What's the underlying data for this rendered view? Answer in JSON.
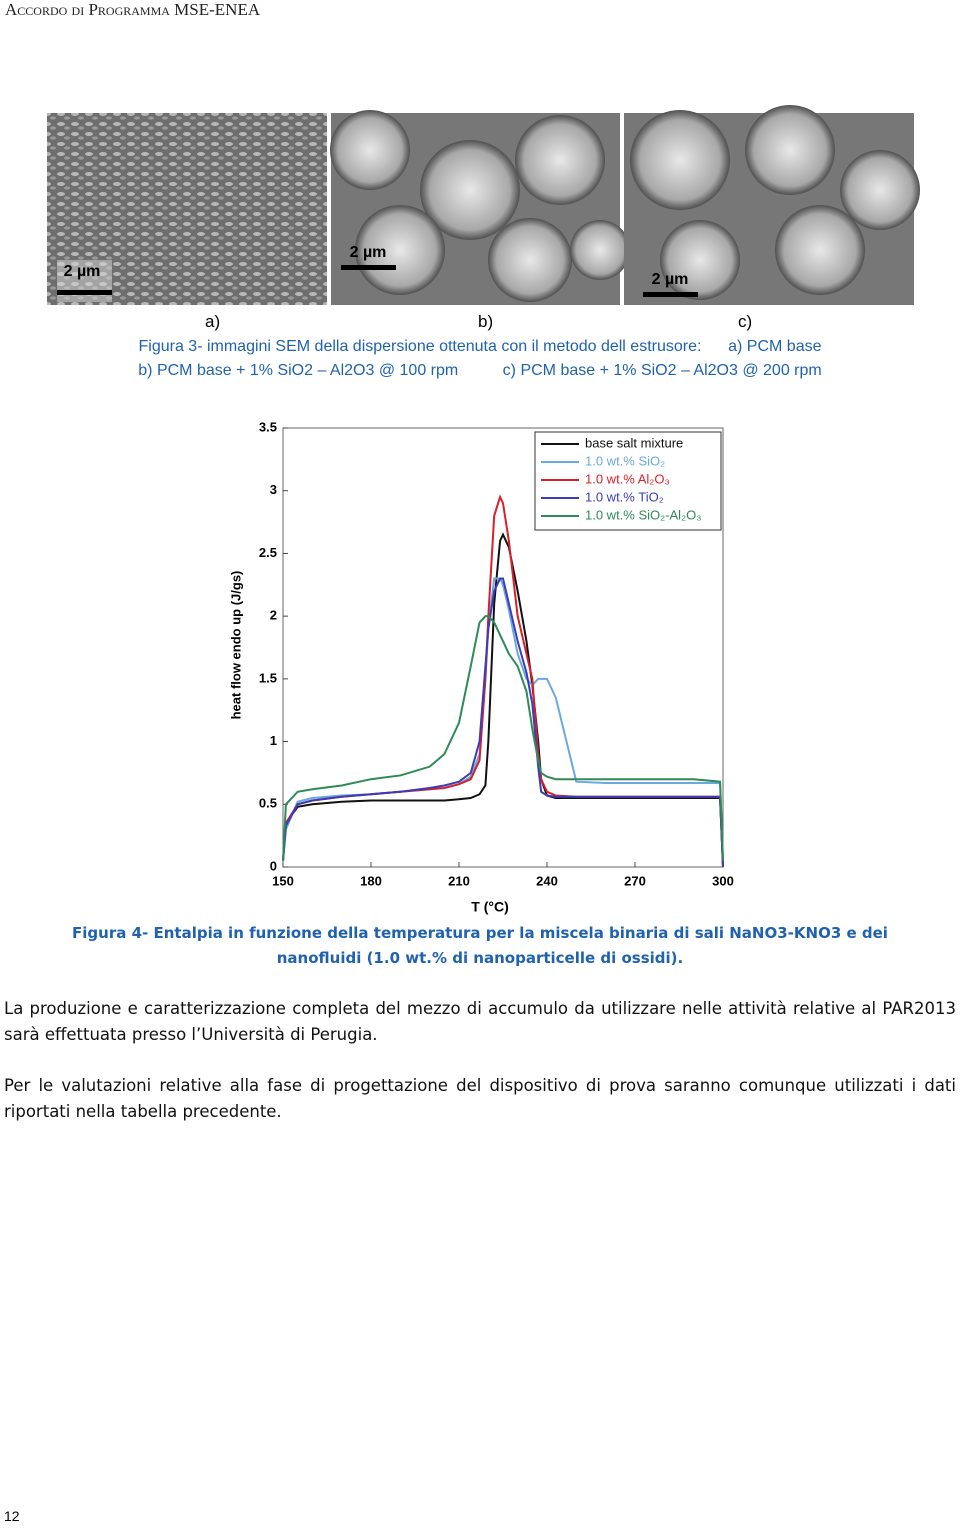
{
  "header": "Accordo di Programma MSE-ENEA",
  "figure3": {
    "scale_labels": [
      "2 µm",
      "2 µm",
      "2 µm"
    ],
    "panel_labels": [
      "a)",
      "b)",
      "c)"
    ],
    "caption": [
      "Figura 3- immagini SEM della dispersione ottenuta con il metodo dell estrusore:      a) PCM base",
      "b) PCM base + 1% SiO2 – Al2O3 @ 100 rpm          c) PCM base + 1% SiO2 – Al2O3 @ 200 rpm"
    ]
  },
  "chart_data": {
    "type": "line",
    "xlabel": "T (°C)",
    "ylabel": "heat flow endo up (J/gs)",
    "x": [
      150,
      151,
      155,
      160,
      170,
      180,
      190,
      200,
      205,
      210,
      214,
      217,
      219,
      220,
      222,
      224,
      225,
      227,
      230,
      233,
      235,
      237,
      238,
      240,
      243,
      250,
      260,
      270,
      280,
      290,
      299,
      300
    ],
    "xlim": [
      150,
      300
    ],
    "xticks": [
      150,
      180,
      210,
      240,
      270,
      300
    ],
    "ylim": [
      0,
      3.5
    ],
    "yticks": [
      0,
      0.5,
      1,
      1.5,
      2,
      2.5,
      3,
      3.5
    ],
    "legend": "upper right",
    "series": [
      {
        "name": "base salt mixture",
        "color": "#111111",
        "values": [
          0.05,
          0.35,
          0.48,
          0.5,
          0.52,
          0.53,
          0.53,
          0.53,
          0.53,
          0.54,
          0.55,
          0.58,
          0.65,
          1.0,
          2.1,
          2.6,
          2.65,
          2.55,
          2.2,
          1.8,
          1.45,
          1.0,
          0.7,
          0.57,
          0.55,
          0.55,
          0.55,
          0.55,
          0.55,
          0.55,
          0.55,
          0.0
        ]
      },
      {
        "name": "1.0 wt.% SiO₂",
        "color": "#6aa8e0",
        "values": [
          0.05,
          0.3,
          0.52,
          0.55,
          0.57,
          0.58,
          0.6,
          0.62,
          0.63,
          0.66,
          0.72,
          0.9,
          1.5,
          1.9,
          2.3,
          2.3,
          2.25,
          2.05,
          1.7,
          1.5,
          1.45,
          1.5,
          1.5,
          1.5,
          1.35,
          0.68,
          0.67,
          0.67,
          0.67,
          0.67,
          0.67,
          0.05
        ]
      },
      {
        "name": "1.0 wt.% Al₂O₃",
        "color": "#d9202a",
        "values": [
          0.05,
          0.35,
          0.5,
          0.53,
          0.56,
          0.58,
          0.6,
          0.62,
          0.63,
          0.66,
          0.7,
          0.85,
          1.5,
          2.0,
          2.8,
          2.95,
          2.9,
          2.6,
          2.0,
          1.7,
          1.5,
          0.9,
          0.7,
          0.6,
          0.57,
          0.56,
          0.56,
          0.56,
          0.56,
          0.56,
          0.56,
          0.0
        ]
      },
      {
        "name": "1.0 wt.% TiO₂",
        "color": "#3c3cb8",
        "values": [
          0.05,
          0.33,
          0.5,
          0.53,
          0.56,
          0.58,
          0.6,
          0.63,
          0.65,
          0.68,
          0.75,
          1.0,
          1.6,
          1.9,
          2.2,
          2.3,
          2.3,
          2.1,
          1.8,
          1.55,
          1.3,
          0.8,
          0.6,
          0.57,
          0.56,
          0.56,
          0.56,
          0.56,
          0.56,
          0.56,
          0.56,
          0.0
        ]
      },
      {
        "name": "1.0 wt.% SiO₂-Al₂O₃",
        "color": "#2e8b57",
        "values": [
          0.05,
          0.5,
          0.6,
          0.62,
          0.65,
          0.7,
          0.73,
          0.8,
          0.9,
          1.15,
          1.6,
          1.95,
          2.0,
          2.0,
          1.95,
          1.85,
          1.8,
          1.7,
          1.6,
          1.4,
          1.1,
          0.85,
          0.75,
          0.72,
          0.7,
          0.7,
          0.7,
          0.7,
          0.7,
          0.7,
          0.68,
          0.05
        ]
      }
    ]
  },
  "figure4": {
    "caption": [
      "Figura 4- Entalpia in funzione della temperatura per la miscela binaria di sali NaNO3-KNO3 e dei",
      "nanofluidi (1.0 wt.% di nanoparticelle di ossidi)."
    ]
  },
  "paragraphs": [
    "La produzione e caratterizzazione completa del mezzo di accumulo da utilizzare nelle attività relative al PAR2013 sarà effettuata presso l’Università di Perugia.",
    "Per le valutazioni relative alla fase di progettazione del dispositivo di prova saranno comunque utilizzati i dati riportati nella tabella precedente."
  ],
  "page_number": "12"
}
